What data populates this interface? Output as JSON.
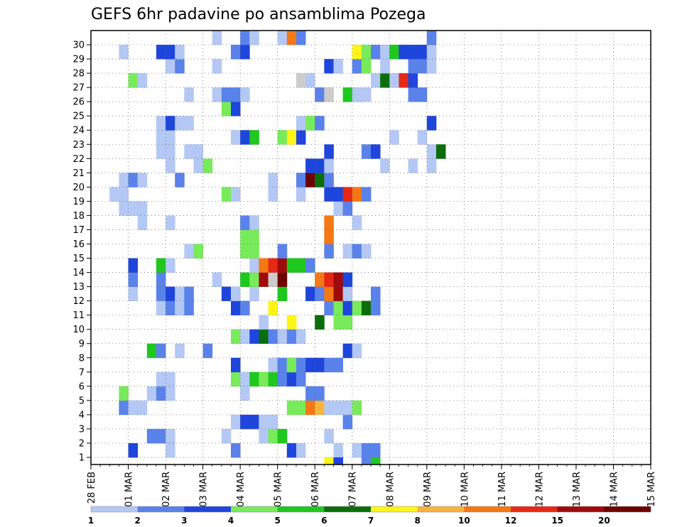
{
  "chart_data": {
    "type": "heatmap",
    "title": "GEFS 6hr padavine po ansamblima Pozega",
    "xlabel": "",
    "ylabel": "",
    "x_tick_labels": [
      "28 FEB",
      "01 MAR",
      "02 MAR",
      "03 MAR",
      "04 MAR",
      "05 MAR",
      "06 MAR",
      "07 MAR",
      "08 MAR",
      "09 MAR",
      "10 MAR",
      "11 MAR",
      "12 MAR",
      "13 MAR",
      "14 MAR",
      "15 MAR"
    ],
    "y_tick_labels": [
      "1",
      "2",
      "3",
      "4",
      "5",
      "6",
      "7",
      "8",
      "9",
      "10",
      "11",
      "12",
      "13",
      "14",
      "15",
      "16",
      "17",
      "18",
      "19",
      "20",
      "21",
      "22",
      "23",
      "24",
      "25",
      "26",
      "27",
      "28",
      "29",
      "30"
    ],
    "steps_per_day": 4,
    "n_members": 30,
    "grid": true,
    "colorbar": {
      "ticks": [
        "1",
        "2",
        "3",
        "4",
        "5",
        "6",
        "7",
        "8",
        "10",
        "12",
        "15",
        "20"
      ],
      "colors": [
        "#b4c8f5",
        "#5a82eb",
        "#1e46dc",
        "#78eb5a",
        "#1ec81e",
        "#0a6e0a",
        "#fff514",
        "#fab43c",
        "#f57814",
        "#e62814",
        "#a00a0a",
        "#6e0000"
      ]
    },
    "cells": [
      [
        4,
        1,
        3
      ],
      [
        8,
        1,
        1
      ],
      [
        15,
        1,
        2
      ],
      [
        21,
        1,
        3
      ],
      [
        22,
        1,
        1
      ],
      [
        26,
        1,
        1
      ],
      [
        28,
        1,
        1
      ],
      [
        29,
        1,
        2
      ],
      [
        30,
        1,
        2
      ],
      [
        6,
        2,
        2
      ],
      [
        7,
        2,
        2
      ],
      [
        8,
        2,
        1
      ],
      [
        14,
        2,
        1
      ],
      [
        18,
        2,
        1
      ],
      [
        19,
        2,
        4
      ],
      [
        20,
        2,
        5
      ],
      [
        25,
        2,
        1
      ],
      [
        15,
        3,
        1
      ],
      [
        16,
        3,
        3
      ],
      [
        17,
        3,
        3
      ],
      [
        18,
        3,
        1
      ],
      [
        19,
        3,
        1
      ],
      [
        27,
        3,
        2
      ],
      [
        3,
        4,
        2
      ],
      [
        4,
        4,
        1
      ],
      [
        5,
        4,
        1
      ],
      [
        21,
        4,
        4
      ],
      [
        22,
        4,
        4
      ],
      [
        23,
        4,
        9
      ],
      [
        24,
        4,
        8
      ],
      [
        25,
        4,
        1
      ],
      [
        26,
        4,
        1
      ],
      [
        27,
        4,
        1
      ],
      [
        28,
        4,
        4
      ],
      [
        3,
        5,
        4
      ],
      [
        6,
        5,
        1
      ],
      [
        7,
        5,
        2
      ],
      [
        8,
        5,
        1
      ],
      [
        16,
        5,
        1
      ],
      [
        23,
        5,
        2
      ],
      [
        24,
        5,
        2
      ],
      [
        7,
        6,
        1
      ],
      [
        8,
        6,
        1
      ],
      [
        15,
        6,
        4
      ],
      [
        16,
        6,
        1
      ],
      [
        17,
        6,
        5
      ],
      [
        18,
        6,
        4
      ],
      [
        19,
        6,
        5
      ],
      [
        20,
        6,
        2
      ],
      [
        21,
        6,
        3
      ],
      [
        22,
        6,
        2
      ],
      [
        15,
        7,
        3
      ],
      [
        19,
        7,
        1
      ],
      [
        20,
        7,
        2
      ],
      [
        21,
        7,
        4
      ],
      [
        21,
        7,
        4
      ],
      [
        22,
        7,
        2
      ],
      [
        23,
        7,
        3
      ],
      [
        24,
        7,
        3
      ],
      [
        25,
        7,
        2
      ],
      [
        26,
        7,
        2
      ],
      [
        6,
        8,
        5
      ],
      [
        7,
        8,
        2
      ],
      [
        9,
        8,
        1
      ],
      [
        12,
        8,
        2
      ],
      [
        27,
        8,
        3
      ],
      [
        28,
        8,
        1
      ],
      [
        15,
        9,
        4
      ],
      [
        16,
        9,
        1
      ],
      [
        17,
        9,
        3
      ],
      [
        18,
        9,
        6
      ],
      [
        19,
        9,
        2
      ],
      [
        20,
        9,
        1
      ],
      [
        21,
        9,
        2
      ],
      [
        22,
        9,
        1
      ],
      [
        18,
        10,
        1
      ],
      [
        21,
        10,
        7
      ],
      [
        24,
        10,
        6
      ],
      [
        26,
        10,
        4
      ],
      [
        27,
        10,
        4
      ],
      [
        7,
        11,
        1
      ],
      [
        8,
        11,
        2
      ],
      [
        9,
        11,
        1
      ],
      [
        10,
        11,
        2
      ],
      [
        15,
        11,
        3
      ],
      [
        16,
        11,
        2
      ],
      [
        19,
        11,
        7
      ],
      [
        25,
        11,
        2
      ],
      [
        26,
        11,
        4
      ],
      [
        27,
        11,
        3
      ],
      [
        28,
        11,
        4
      ],
      [
        29,
        11,
        6
      ],
      [
        30,
        11,
        2
      ],
      [
        4,
        12,
        1
      ],
      [
        7,
        12,
        2
      ],
      [
        8,
        12,
        3
      ],
      [
        9,
        12,
        1
      ],
      [
        10,
        12,
        2
      ],
      [
        14,
        12,
        3
      ],
      [
        15,
        12,
        1
      ],
      [
        17,
        12,
        1
      ],
      [
        20,
        12,
        5
      ],
      [
        23,
        12,
        3
      ],
      [
        24,
        12,
        2
      ],
      [
        25,
        12,
        9
      ],
      [
        26,
        12,
        11
      ],
      [
        27,
        12,
        1
      ],
      [
        30,
        12,
        2
      ],
      [
        4,
        13,
        2
      ],
      [
        7,
        13,
        2
      ],
      [
        13,
        13,
        1
      ],
      [
        16,
        13,
        5
      ],
      [
        17,
        13,
        4
      ],
      [
        18,
        13,
        11
      ],
      [
        19,
        13,
        13
      ],
      [
        20,
        13,
        12
      ],
      [
        24,
        13,
        9
      ],
      [
        25,
        13,
        10
      ],
      [
        26,
        13,
        11
      ],
      [
        27,
        13,
        3
      ],
      [
        4,
        14,
        3
      ],
      [
        7,
        14,
        5
      ],
      [
        8,
        14,
        1
      ],
      [
        17,
        14,
        1
      ],
      [
        18,
        14,
        9
      ],
      [
        19,
        14,
        10
      ],
      [
        20,
        14,
        11
      ],
      [
        21,
        14,
        5
      ],
      [
        22,
        14,
        5
      ],
      [
        23,
        14,
        2
      ],
      [
        10,
        15,
        1
      ],
      [
        11,
        15,
        4
      ],
      [
        16,
        15,
        4
      ],
      [
        17,
        15,
        4
      ],
      [
        20,
        15,
        2
      ],
      [
        25,
        15,
        2
      ],
      [
        27,
        15,
        1
      ],
      [
        28,
        15,
        2
      ],
      [
        29,
        15,
        1
      ],
      [
        16,
        16,
        4
      ],
      [
        17,
        16,
        4
      ],
      [
        25,
        16,
        9
      ],
      [
        5,
        17,
        1
      ],
      [
        8,
        17,
        1
      ],
      [
        16,
        17,
        2
      ],
      [
        17,
        17,
        1
      ],
      [
        25,
        17,
        9
      ],
      [
        28,
        17,
        1
      ],
      [
        3,
        18,
        1
      ],
      [
        4,
        18,
        1
      ],
      [
        5,
        18,
        1
      ],
      [
        26,
        18,
        1
      ],
      [
        27,
        18,
        2
      ],
      [
        2,
        19,
        1
      ],
      [
        3,
        19,
        1
      ],
      [
        14,
        19,
        4
      ],
      [
        15,
        19,
        1
      ],
      [
        19,
        19,
        1
      ],
      [
        22,
        19,
        1
      ],
      [
        25,
        19,
        3
      ],
      [
        26,
        19,
        3
      ],
      [
        27,
        19,
        10
      ],
      [
        28,
        19,
        9
      ],
      [
        29,
        19,
        2
      ],
      [
        3,
        20,
        1
      ],
      [
        4,
        20,
        2
      ],
      [
        5,
        20,
        1
      ],
      [
        9,
        20,
        2
      ],
      [
        19,
        20,
        1
      ],
      [
        22,
        20,
        2
      ],
      [
        23,
        20,
        12
      ],
      [
        24,
        20,
        6
      ],
      [
        25,
        20,
        2
      ],
      [
        8,
        21,
        1
      ],
      [
        11,
        21,
        1
      ],
      [
        12,
        21,
        4
      ],
      [
        23,
        21,
        3
      ],
      [
        24,
        21,
        3
      ],
      [
        25,
        21,
        1
      ],
      [
        31,
        21,
        1
      ],
      [
        34,
        21,
        1
      ],
      [
        36,
        21,
        1
      ],
      [
        7,
        22,
        1
      ],
      [
        8,
        22,
        1
      ],
      [
        10,
        22,
        1
      ],
      [
        11,
        22,
        1
      ],
      [
        25,
        22,
        3
      ],
      [
        29,
        22,
        2
      ],
      [
        30,
        22,
        3
      ],
      [
        36,
        22,
        1
      ],
      [
        37,
        22,
        6
      ],
      [
        7,
        23,
        1
      ],
      [
        8,
        23,
        1
      ],
      [
        15,
        23,
        1
      ],
      [
        16,
        23,
        3
      ],
      [
        17,
        23,
        5
      ],
      [
        20,
        23,
        4
      ],
      [
        21,
        23,
        7
      ],
      [
        22,
        23,
        3
      ],
      [
        32,
        23,
        1
      ],
      [
        35,
        23,
        1
      ],
      [
        7,
        24,
        1
      ],
      [
        8,
        24,
        3
      ],
      [
        9,
        24,
        1
      ],
      [
        10,
        24,
        1
      ],
      [
        22,
        24,
        1
      ],
      [
        23,
        24,
        4
      ],
      [
        24,
        24,
        2
      ],
      [
        36,
        24,
        3
      ],
      [
        14,
        25,
        4
      ],
      [
        15,
        25,
        3
      ],
      [
        10,
        26,
        1
      ],
      [
        13,
        26,
        1
      ],
      [
        14,
        26,
        2
      ],
      [
        15,
        26,
        2
      ],
      [
        16,
        26,
        1
      ],
      [
        24,
        26,
        2
      ],
      [
        25,
        26,
        13
      ],
      [
        27,
        26,
        5
      ],
      [
        28,
        26,
        1
      ],
      [
        29,
        26,
        1
      ],
      [
        34,
        26,
        2
      ],
      [
        35,
        26,
        2
      ],
      [
        4,
        27,
        4
      ],
      [
        5,
        27,
        1
      ],
      [
        22,
        27,
        13
      ],
      [
        23,
        27,
        1
      ],
      [
        30,
        27,
        1
      ],
      [
        31,
        27,
        6
      ],
      [
        32,
        27,
        1
      ],
      [
        33,
        27,
        10
      ],
      [
        34,
        27,
        3
      ],
      [
        8,
        28,
        1
      ],
      [
        9,
        28,
        2
      ],
      [
        13,
        28,
        1
      ],
      [
        25,
        28,
        3
      ],
      [
        26,
        28,
        1
      ],
      [
        28,
        28,
        2
      ],
      [
        29,
        28,
        4
      ],
      [
        31,
        28,
        1
      ],
      [
        34,
        28,
        2
      ],
      [
        35,
        28,
        2
      ],
      [
        36,
        28,
        1
      ],
      [
        3,
        29,
        1
      ],
      [
        7,
        29,
        3
      ],
      [
        8,
        29,
        3
      ],
      [
        9,
        29,
        1
      ],
      [
        15,
        29,
        2
      ],
      [
        16,
        29,
        3
      ],
      [
        28,
        29,
        7
      ],
      [
        29,
        29,
        4
      ],
      [
        30,
        29,
        2
      ],
      [
        31,
        29,
        1
      ],
      [
        32,
        29,
        5
      ],
      [
        33,
        29,
        3
      ],
      [
        34,
        29,
        3
      ],
      [
        35,
        29,
        3
      ],
      [
        36,
        29,
        1
      ],
      [
        13,
        30,
        1
      ],
      [
        16,
        30,
        2
      ],
      [
        17,
        30,
        1
      ],
      [
        20,
        30,
        1
      ],
      [
        21,
        30,
        9
      ],
      [
        22,
        30,
        2
      ],
      [
        36,
        30,
        2
      ],
      [
        25,
        0.45,
        7
      ],
      [
        26,
        0.45,
        3
      ],
      [
        29,
        0.45,
        2
      ],
      [
        30,
        0.45,
        5
      ]
    ]
  }
}
